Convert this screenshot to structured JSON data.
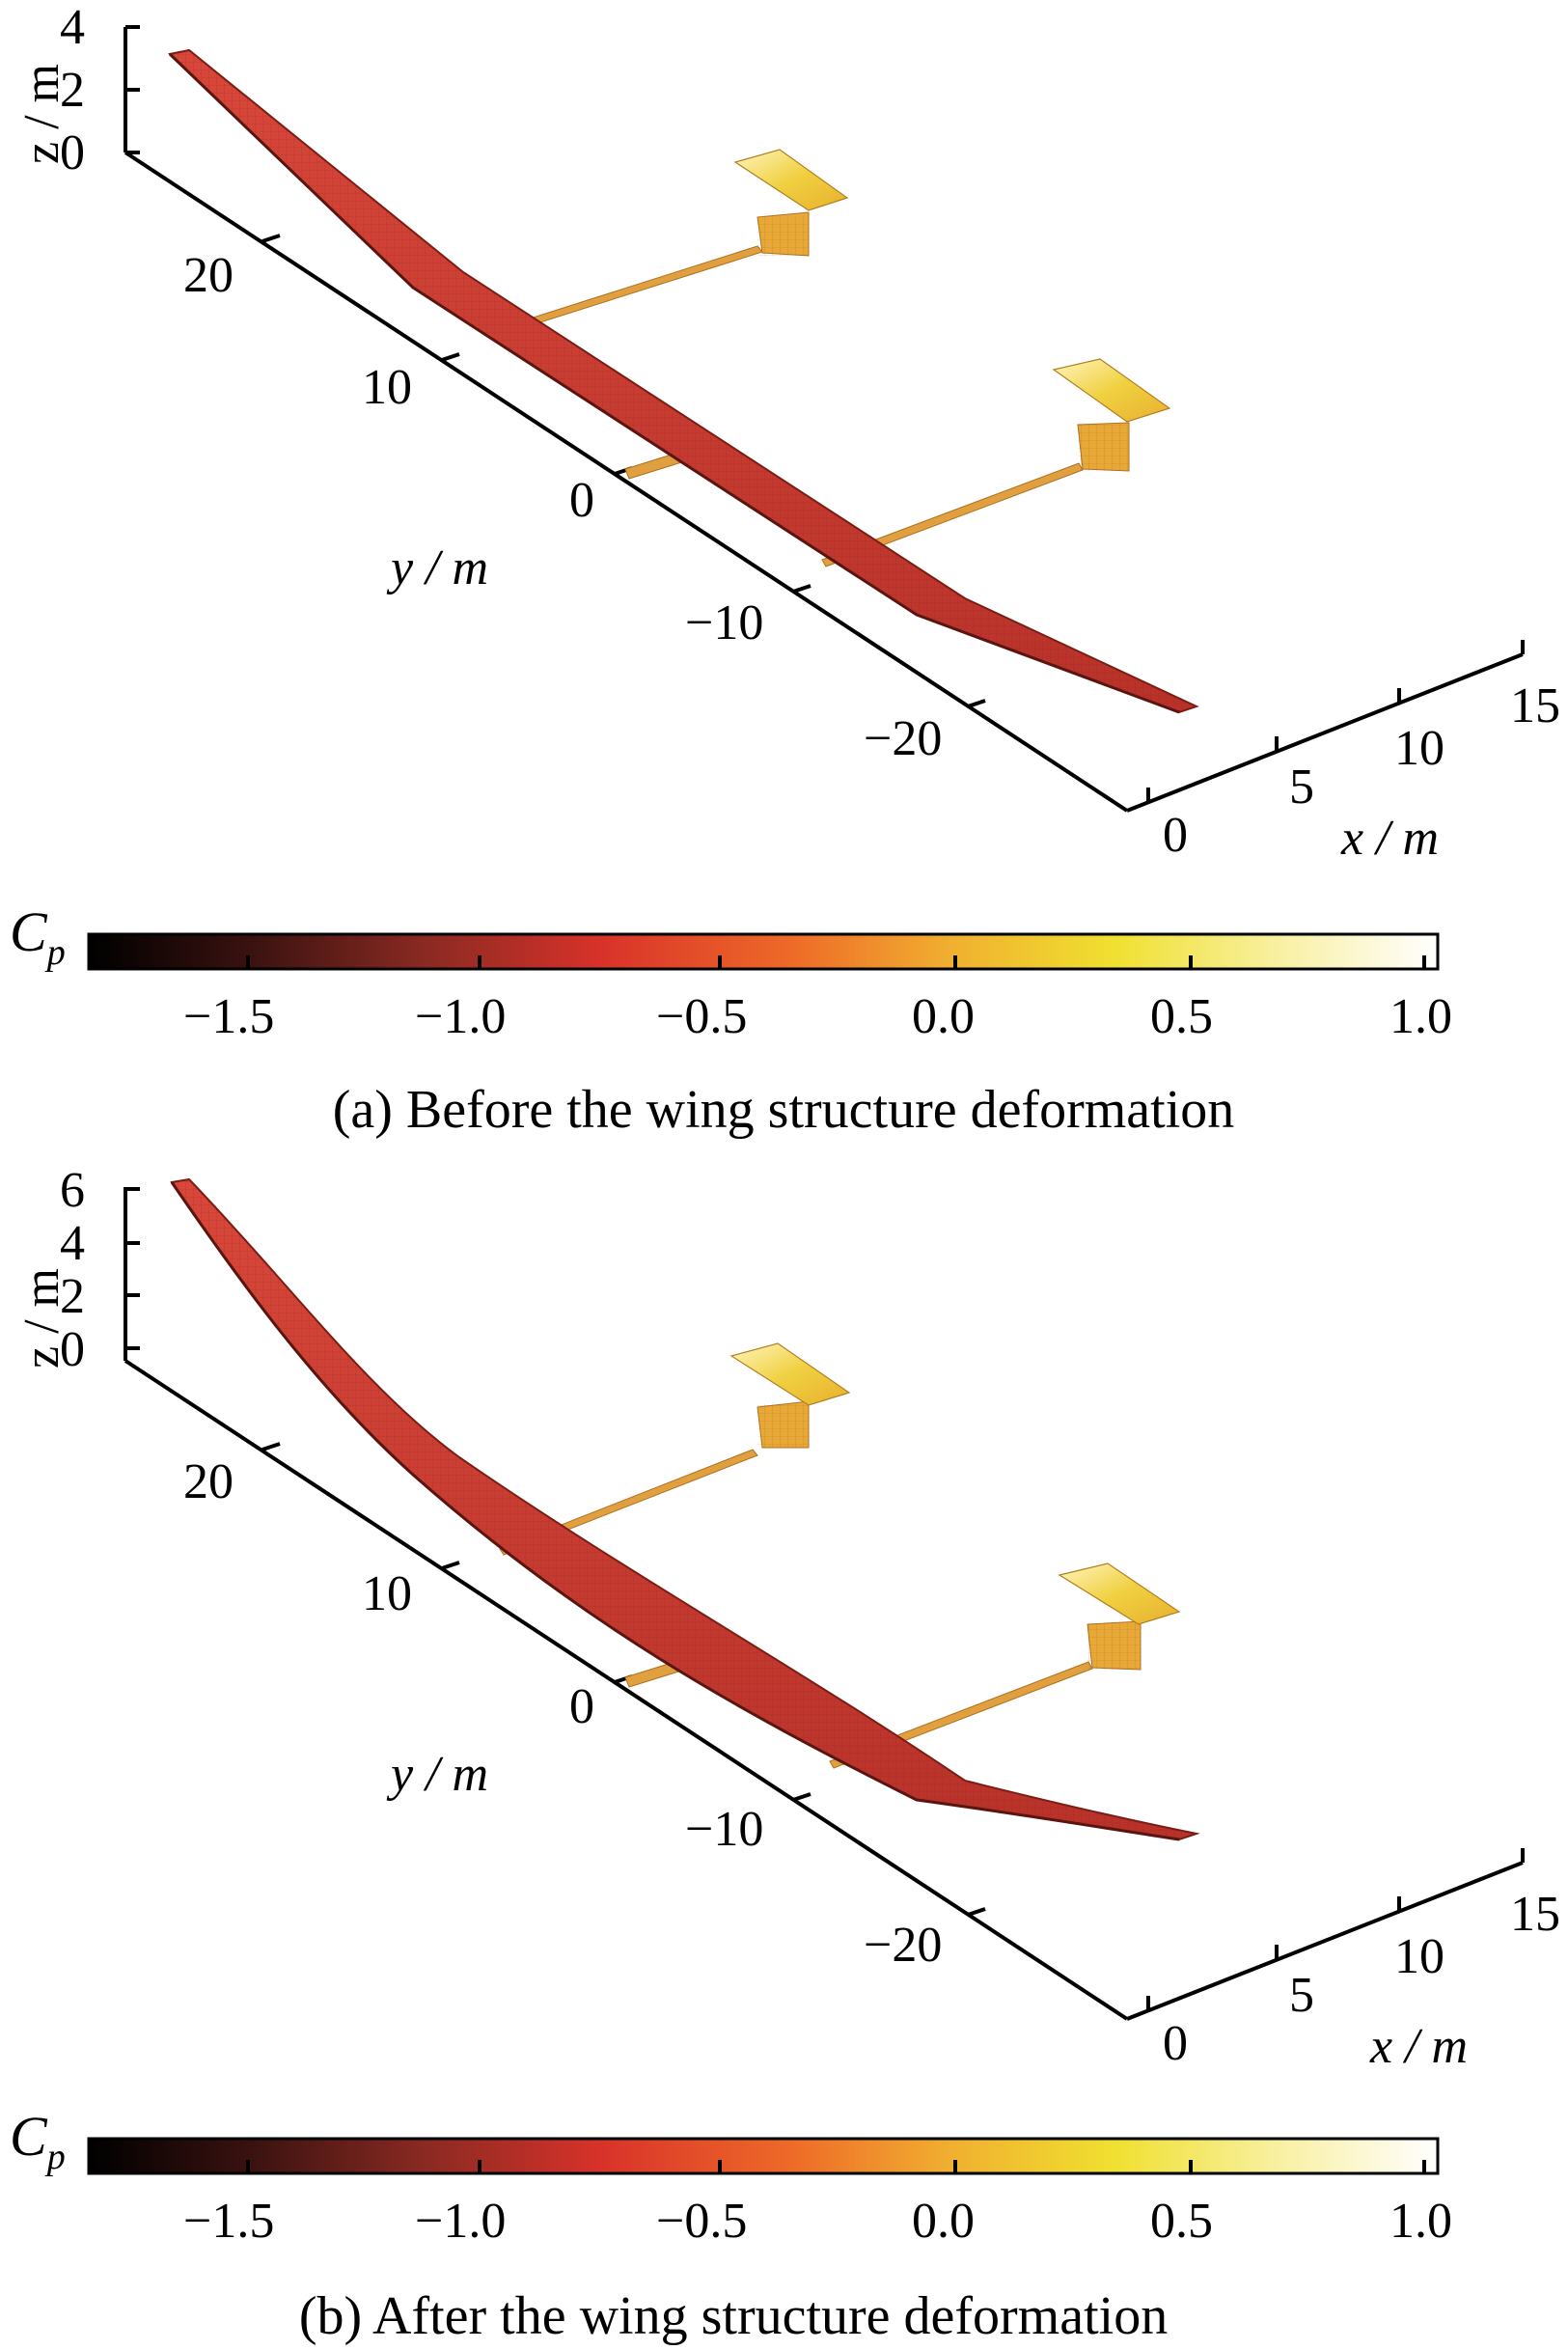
{
  "panels": [
    {
      "caption": "(a) Before the wing structure deformation",
      "axes": {
        "z_label": "z / m",
        "y_label": "y / m",
        "x_label": "x / m",
        "z_ticks": [
          "4",
          "2",
          "0"
        ],
        "y_ticks": [
          "20",
          "10",
          "0",
          "−10",
          "−20"
        ],
        "x_ticks": [
          "0",
          "5",
          "10",
          "15"
        ]
      },
      "colorbar": {
        "label": "C",
        "label_sub": "p",
        "ticks": [
          "−1.5",
          "−1.0",
          "−0.5",
          "0.0",
          "0.5",
          "1.0"
        ]
      }
    },
    {
      "caption": "(b) After the wing structure deformation",
      "axes": {
        "z_label": "z / m",
        "y_label": "y / m",
        "x_label": "x / m",
        "z_ticks": [
          "6",
          "4",
          "2",
          "0"
        ],
        "y_ticks": [
          "20",
          "10",
          "0",
          "−10",
          "−20"
        ],
        "x_ticks": [
          "0",
          "5",
          "10",
          "15"
        ]
      },
      "colorbar": {
        "label": "C",
        "label_sub": "p",
        "ticks": [
          "−1.5",
          "−1.0",
          "−0.5",
          "0.0",
          "0.5",
          "1.0"
        ]
      }
    }
  ],
  "colors": {
    "wing": "#c83a2c",
    "wing_edge": "#7a1d14",
    "boom": "#e0a040",
    "tail": "#f0d050",
    "colormap": [
      "#000000",
      "#3a1210",
      "#8a2a22",
      "#d8322a",
      "#ee6a28",
      "#f0b030",
      "#f0e030",
      "#f8f0a0",
      "#ffffff"
    ]
  }
}
